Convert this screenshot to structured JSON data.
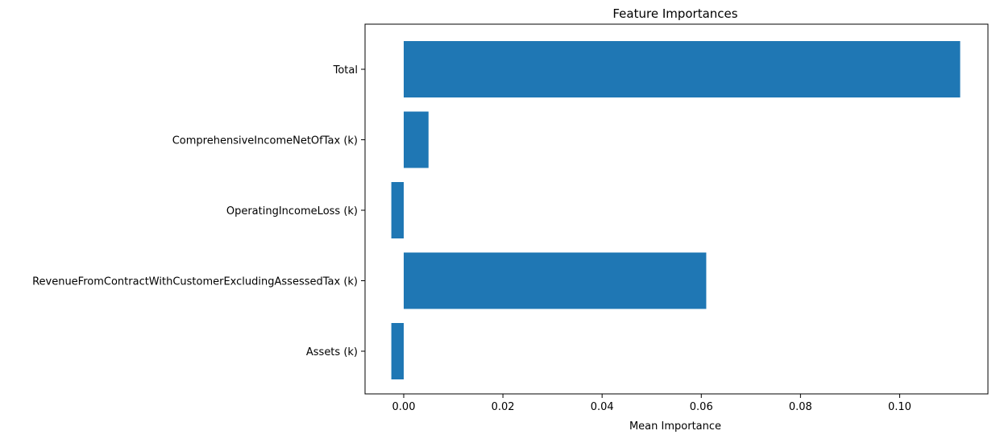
{
  "chart_data": {
    "type": "bar",
    "orientation": "horizontal",
    "title": "Feature Importances",
    "xlabel": "Mean Importance",
    "ylabel": "",
    "categories": [
      "Total",
      "ComprehensiveIncomeNetOfTax (k)",
      "OperatingIncomeLoss (k)",
      "RevenueFromContractWithCustomerExcludingAssessedTax (k)",
      "Assets (k)"
    ],
    "values": [
      0.1122,
      0.005,
      -0.0025,
      0.061,
      -0.0025
    ],
    "xlim": [
      -0.0078,
      0.1178
    ],
    "xticks": [
      0.0,
      0.02,
      0.04,
      0.06,
      0.08,
      0.1
    ],
    "xtick_labels": [
      "0.00",
      "0.02",
      "0.04",
      "0.06",
      "0.08",
      "0.10"
    ],
    "bar_color": "#1f77b4",
    "grid": false,
    "legend": "none"
  }
}
